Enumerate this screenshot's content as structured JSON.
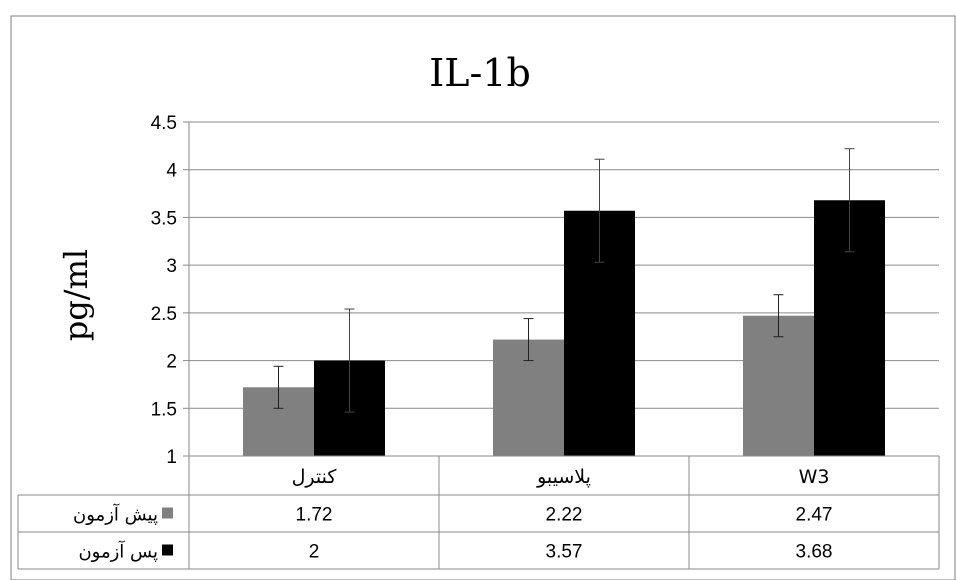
{
  "chart_data": {
    "type": "bar",
    "title": "IL-1b",
    "ylabel": "pg/ml",
    "xlabel": "",
    "ylim": [
      1,
      4.5
    ],
    "yticks": [
      "1",
      "1.5",
      "2",
      "2.5",
      "3",
      "3.5",
      "4",
      "4.5"
    ],
    "categories": [
      "کنترل",
      "پلاسیبو",
      "W3"
    ],
    "series": [
      {
        "name": "پیش آزمون",
        "values": [
          1.72,
          2.22,
          2.47
        ],
        "errors": [
          0.22,
          0.22,
          0.22
        ],
        "display": [
          "1.72",
          "2.22",
          "2.47"
        ],
        "color": "#808080"
      },
      {
        "name": "پس آزمون",
        "values": [
          2,
          3.57,
          3.68
        ],
        "errors": [
          0.54,
          0.54,
          0.54
        ],
        "display": [
          "2",
          "3.57",
          "3.68"
        ],
        "color": "#000000"
      }
    ],
    "grid": true,
    "legend": "data-table"
  }
}
